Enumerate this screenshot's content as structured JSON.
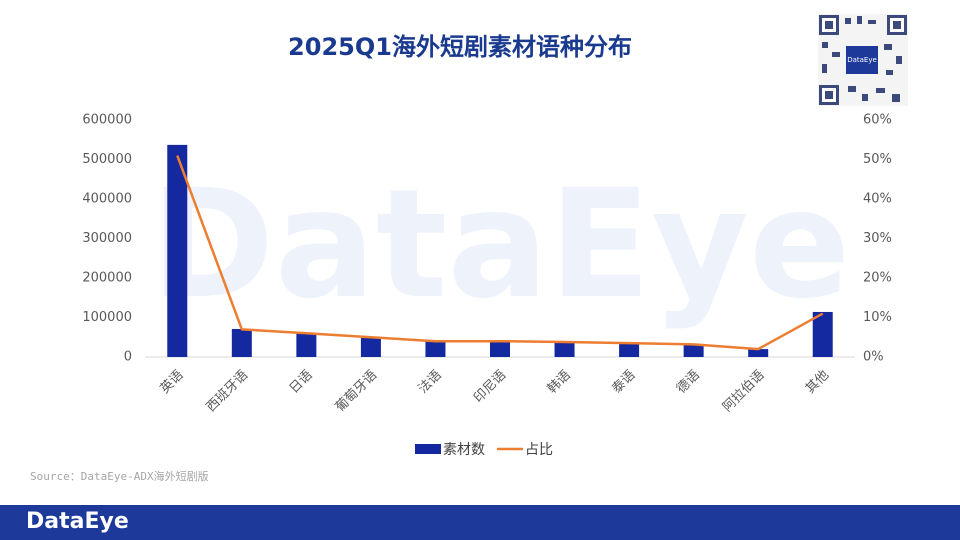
{
  "chart_data": {
    "type": "bar_line",
    "title": "2025Q1海外短剧素材语种分布",
    "categories": [
      "英语",
      "西班牙语",
      "日语",
      "葡萄牙语",
      "法语",
      "印尼语",
      "韩语",
      "泰语",
      "德语",
      "阿拉伯语",
      "其他"
    ],
    "series": [
      {
        "name": "素材数",
        "type": "bar",
        "color": "#1428a0",
        "values": [
          537000,
          71000,
          61000,
          48000,
          40500,
          40000,
          38000,
          35000,
          30000,
          20000,
          114000
        ]
      },
      {
        "name": "占比",
        "type": "line",
        "axis": "y2",
        "color": "#ed7d31",
        "values": [
          51,
          7,
          6,
          5,
          4,
          4,
          3.8,
          3.5,
          3.2,
          2,
          11
        ]
      }
    ],
    "ylim": [
      0,
      600000
    ],
    "yticks": [
      0,
      100000,
      200000,
      300000,
      400000,
      500000,
      600000
    ],
    "y2lim": [
      0,
      60
    ],
    "y2ticks": [
      {
        "value": 0,
        "label": "0%"
      },
      {
        "value": 10,
        "label": "10%"
      },
      {
        "value": 20,
        "label": "20%"
      },
      {
        "value": 30,
        "label": "30%"
      },
      {
        "value": 40,
        "label": "40%"
      },
      {
        "value": 50,
        "label": "50%"
      },
      {
        "value": 60,
        "label": "60%"
      }
    ],
    "legend": "bottom",
    "source": "Source：DataEye-ADX海外短剧版",
    "watermark": "DataEye",
    "brand": "DataEye",
    "qr_label": "DataEye"
  }
}
